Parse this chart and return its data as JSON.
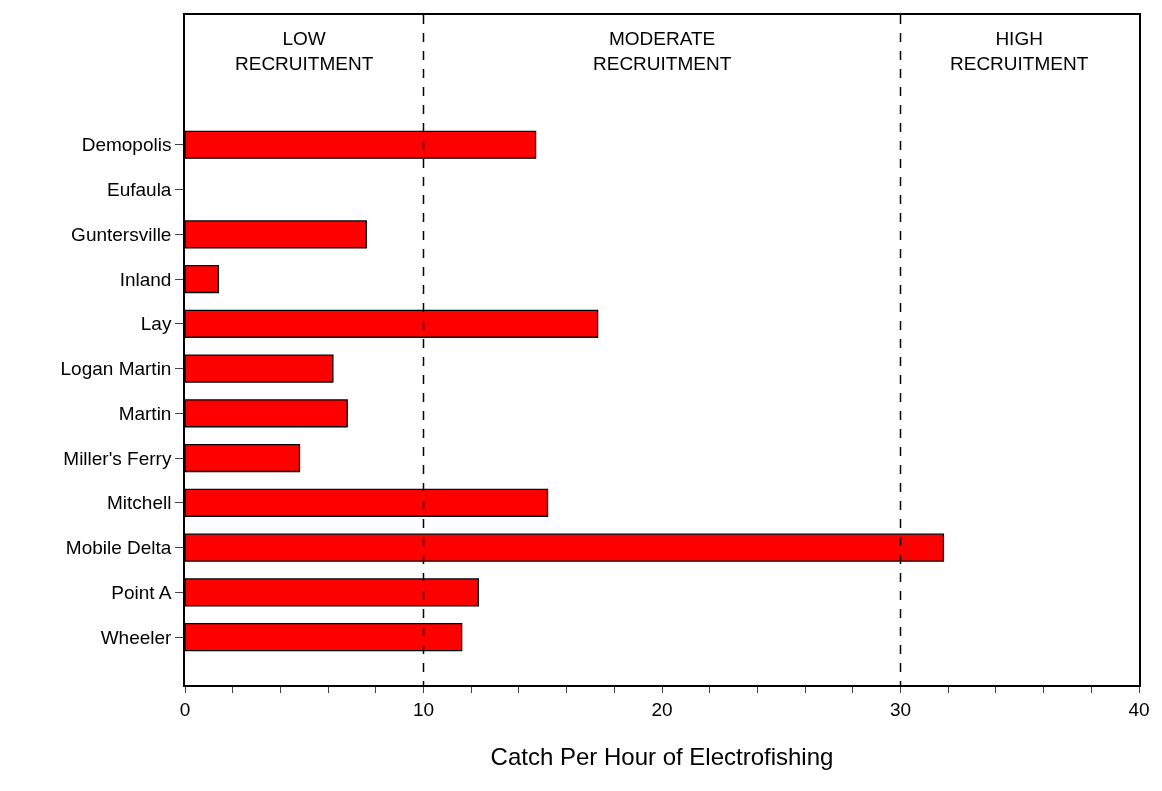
{
  "chart_data": {
    "type": "bar",
    "orientation": "horizontal",
    "xlabel": "Catch Per Hour of Electrofishing",
    "categories": [
      "Demopolis",
      "Eufaula",
      "Guntersville",
      "Inland",
      "Lay",
      "Logan Martin",
      "Martin",
      "Miller's Ferry",
      "Mitchell",
      "Mobile Delta",
      "Point A",
      "Wheeler"
    ],
    "values": [
      14.7,
      null,
      7.6,
      1.4,
      17.3,
      6.2,
      6.8,
      4.8,
      15.2,
      31.8,
      12.3,
      11.6
    ],
    "color": "#ff0000",
    "xlim": [
      0,
      40
    ],
    "xticks": [
      0,
      {
        "value": 2,
        "label": null
      },
      {
        "value": 4,
        "label": null
      },
      {
        "value": 6,
        "label": null
      },
      {
        "value": 8,
        "label": null
      },
      10,
      {
        "value": 12,
        "label": null
      },
      {
        "value": 14,
        "label": null
      },
      {
        "value": 16,
        "label": null
      },
      {
        "value": 18,
        "label": null
      },
      20,
      {
        "value": 22,
        "label": null
      },
      {
        "value": 24,
        "label": null
      },
      {
        "value": 26,
        "label": null
      },
      {
        "value": 28,
        "label": null
      },
      30,
      {
        "value": 32,
        "label": null
      },
      {
        "value": 34,
        "label": null
      },
      {
        "value": 36,
        "label": null
      },
      {
        "value": 38,
        "label": null
      },
      40
    ],
    "ref_lines": [
      {
        "axis": "x",
        "value": 10,
        "line_style": "dashed"
      },
      {
        "axis": "x",
        "value": 30,
        "line_style": "dashed"
      }
    ],
    "annotations": [
      "LOW\nRECRUITMENT",
      "MODERATE\nRECRUITMENT",
      "HIGH\nRECRUITMENT"
    ]
  }
}
